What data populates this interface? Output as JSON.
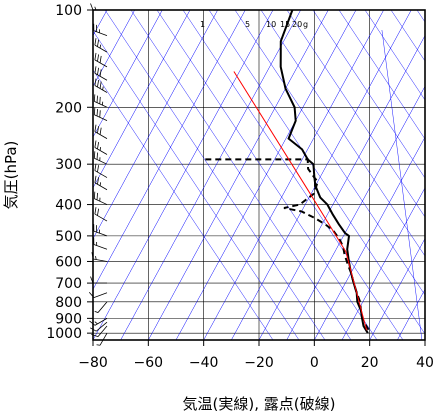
{
  "chart_data": {
    "type": "line",
    "title": "",
    "xlabel": "気温(実線), 露点(破線)",
    "ylabel": "気圧(hPa)",
    "x_scale": "linear",
    "y_scale": "log",
    "y_inverted": true,
    "xlim": [
      -80,
      40
    ],
    "ylim": [
      1050,
      100
    ],
    "x_ticks": [
      -80,
      -60,
      -40,
      -20,
      0,
      20,
      40
    ],
    "x_tick_labels": [
      "−80",
      "−60",
      "−40",
      "−20",
      "0",
      "20",
      "40"
    ],
    "y_ticks": [
      100,
      200,
      300,
      400,
      500,
      600,
      700,
      800,
      900,
      1000
    ],
    "y_tick_labels": [
      "100",
      "200",
      "300",
      "400",
      "500",
      "600",
      "700",
      "800",
      "900",
      "1000"
    ],
    "grid": true,
    "mixing_ratio_labels": [
      "1",
      "5",
      "10",
      "15",
      "20",
      "g"
    ],
    "series": [
      {
        "role": "temperature",
        "style": "solid",
        "color": "#000000",
        "points": [
          [
            -73,
            100
          ],
          [
            -71,
            125
          ],
          [
            -66,
            150
          ],
          [
            -60,
            175
          ],
          [
            -53,
            200
          ],
          [
            -50,
            220
          ],
          [
            -49,
            250
          ],
          [
            -42,
            270
          ],
          [
            -38,
            290
          ],
          [
            -35,
            300
          ],
          [
            -32,
            330
          ],
          [
            -30,
            350
          ],
          [
            -26,
            380
          ],
          [
            -22,
            400
          ],
          [
            -18,
            430
          ],
          [
            -14,
            460
          ],
          [
            -10,
            490
          ],
          [
            -8,
            500
          ],
          [
            -6,
            550
          ],
          [
            -3,
            600
          ],
          [
            0,
            650
          ],
          [
            3,
            700
          ],
          [
            6,
            750
          ],
          [
            8,
            800
          ],
          [
            11,
            850
          ],
          [
            13,
            900
          ],
          [
            15,
            950
          ],
          [
            18,
            1000
          ]
        ]
      },
      {
        "role": "dewpoint",
        "style": "dashed",
        "color": "#000000",
        "points": [
          [
            -75,
            290
          ],
          [
            -38,
            290
          ],
          [
            -36,
            310
          ],
          [
            -32,
            330
          ],
          [
            -30,
            340
          ],
          [
            -29,
            370
          ],
          [
            -32,
            400
          ],
          [
            -37,
            410
          ],
          [
            -30,
            420
          ],
          [
            -24,
            440
          ],
          [
            -19,
            460
          ],
          [
            -15,
            480
          ],
          [
            -11,
            510
          ],
          [
            -8,
            540
          ],
          [
            -6,
            570
          ],
          [
            -3,
            610
          ],
          [
            0,
            650
          ],
          [
            3,
            700
          ],
          [
            6,
            750
          ],
          [
            9,
            800
          ],
          [
            11,
            850
          ],
          [
            13,
            900
          ],
          [
            16,
            950
          ],
          [
            19,
            1000
          ]
        ]
      },
      {
        "role": "reference-adiabat",
        "style": "solid",
        "color": "#ff0000",
        "points": [
          [
            -82,
            155
          ],
          [
            -32,
            360
          ],
          [
            -6,
            560
          ],
          [
            17,
            980
          ]
        ]
      }
    ],
    "wind_barbs": [
      {
        "p": 100,
        "dir": 270,
        "kt": 15
      },
      {
        "p": 120,
        "dir": 290,
        "kt": 25
      },
      {
        "p": 135,
        "dir": 300,
        "kt": 25
      },
      {
        "p": 150,
        "dir": 300,
        "kt": 30
      },
      {
        "p": 165,
        "dir": 300,
        "kt": 30
      },
      {
        "p": 180,
        "dir": 300,
        "kt": 35
      },
      {
        "p": 200,
        "dir": 295,
        "kt": 35
      },
      {
        "p": 220,
        "dir": 295,
        "kt": 30
      },
      {
        "p": 250,
        "dir": 300,
        "kt": 30
      },
      {
        "p": 280,
        "dir": 300,
        "kt": 25
      },
      {
        "p": 300,
        "dir": 295,
        "kt": 25
      },
      {
        "p": 330,
        "dir": 300,
        "kt": 20
      },
      {
        "p": 360,
        "dir": 300,
        "kt": 25
      },
      {
        "p": 400,
        "dir": 295,
        "kt": 25
      },
      {
        "p": 450,
        "dir": 300,
        "kt": 20
      },
      {
        "p": 500,
        "dir": 290,
        "kt": 25
      },
      {
        "p": 550,
        "dir": 290,
        "kt": 15
      },
      {
        "p": 600,
        "dir": 280,
        "kt": 15
      },
      {
        "p": 700,
        "dir": 270,
        "kt": 10
      },
      {
        "p": 750,
        "dir": 250,
        "kt": 10
      },
      {
        "p": 800,
        "dir": 220,
        "kt": 5
      },
      {
        "p": 900,
        "dir": 240,
        "kt": 15
      },
      {
        "p": 925,
        "dir": 230,
        "kt": 10
      },
      {
        "p": 950,
        "dir": 220,
        "kt": 10
      },
      {
        "p": 1000,
        "dir": 210,
        "kt": 5
      }
    ],
    "colors": {
      "background": "#ffffff",
      "frame": "#000000",
      "grid": "#000000",
      "dry_adiabats": "#0000ff",
      "mixing_ratio": "#0000ff",
      "temperature": "#000000",
      "dewpoint": "#000000",
      "reference": "#ff0000"
    }
  }
}
